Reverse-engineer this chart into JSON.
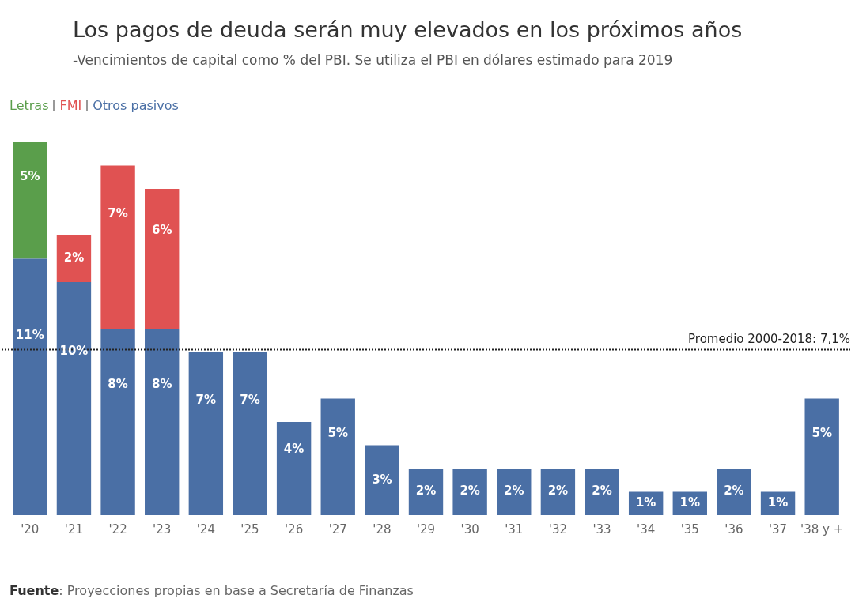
{
  "chart_data": {
    "type": "bar",
    "title": "Los pagos de deuda serán muy elevados en los próximos años",
    "subtitle": "-Vencimientos de capital como % del PBI. Se utiliza el PBI en dólares estimado para 2019",
    "categories": [
      "'20",
      "'21",
      "'22",
      "'23",
      "'24",
      "'25",
      "'26",
      "'27",
      "'28",
      "'29",
      "'30",
      "'31",
      "'32",
      "'33",
      "'34",
      "'35",
      "'36",
      "'37",
      "'38 y +"
    ],
    "series": [
      {
        "name": "Otros pasivos",
        "color": "#4a6fa5",
        "values": [
          11,
          10,
          8,
          8,
          7,
          7,
          4,
          5,
          3,
          2,
          2,
          2,
          2,
          2,
          1,
          1,
          2,
          1,
          5
        ],
        "value_labels": [
          "11%",
          "10%",
          "8%",
          "8%",
          "7%",
          "7%",
          "4%",
          "5%",
          "3%",
          "2%",
          "2%",
          "2%",
          "2%",
          "2%",
          "1%",
          "1%",
          "2%",
          "1%",
          "5%"
        ]
      },
      {
        "name": "FMI",
        "color": "#e05252",
        "values": [
          null,
          2,
          7,
          6,
          null,
          null,
          null,
          null,
          null,
          null,
          null,
          null,
          null,
          null,
          null,
          null,
          null,
          null,
          null
        ],
        "value_labels": [
          null,
          "2%",
          "7%",
          "6%",
          null,
          null,
          null,
          null,
          null,
          null,
          null,
          null,
          null,
          null,
          null,
          null,
          null,
          null,
          null
        ]
      },
      {
        "name": "Letras",
        "color": "#5a9e4b",
        "values": [
          5,
          null,
          null,
          null,
          null,
          null,
          null,
          null,
          null,
          null,
          null,
          null,
          null,
          null,
          null,
          null,
          null,
          null,
          null
        ],
        "value_labels": [
          "5%",
          null,
          null,
          null,
          null,
          null,
          null,
          null,
          null,
          null,
          null,
          null,
          null,
          null,
          null,
          null,
          null,
          null,
          null
        ]
      }
    ],
    "stacked": true,
    "tick_labels": "x",
    "grid": false,
    "legend": "top left",
    "ref_lines": [
      {
        "axis": "y",
        "value": 7.1,
        "label": "Promedio 2000-2018: 7,1%",
        "color": "#222222",
        "line_style": "dotted"
      }
    ],
    "annotations": [
      "Fuente: Proyecciones propias en base a Secretaría de Finanzas"
    ]
  }
}
